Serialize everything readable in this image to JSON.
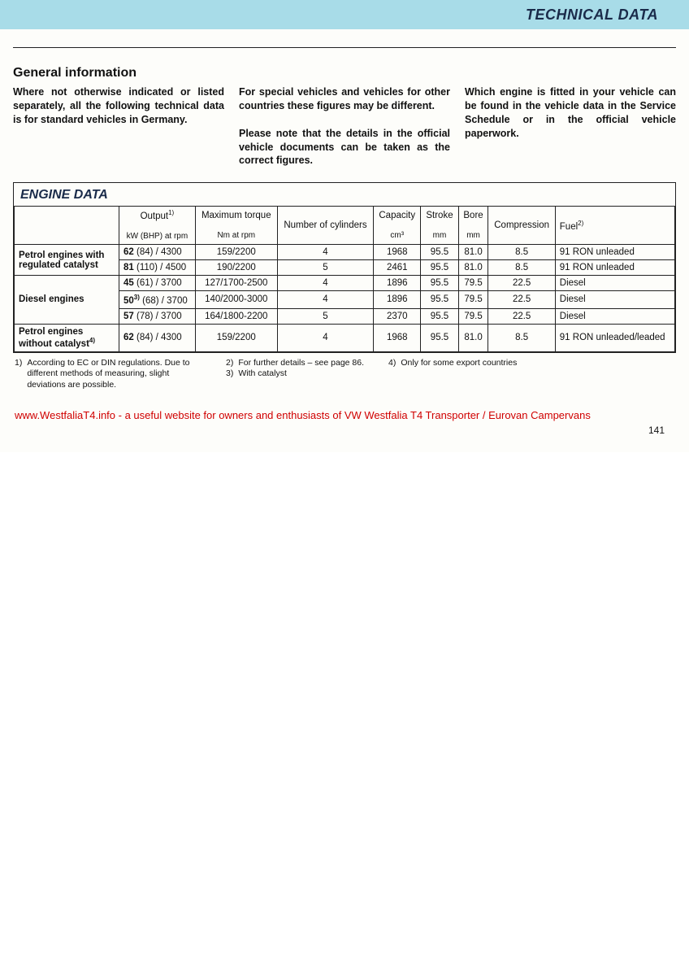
{
  "header": {
    "title": "TECHNICAL DATA"
  },
  "section": {
    "title": "General information",
    "col1": "Where not otherwise indicated or listed separately, all the following technical data is for standard vehicles in Germany.",
    "col2a": "For special vehicles and vehicles for other countries these figures may be different.",
    "col2b": "Please note that the details in the official vehicle documents can be taken as the correct figures.",
    "col3": "Which engine is fitted in your vehicle can be found in the vehicle data in the Service Schedule or in the official vehicle paperwork."
  },
  "table": {
    "title": "ENGINE DATA",
    "headers": {
      "output": "Output",
      "output_sup": "1)",
      "output_sub": "kW (BHP) at rpm",
      "torque": "Maximum torque",
      "torque_sub": "Nm at rpm",
      "cyl": "Number of cylinders",
      "cap": "Capacity",
      "cap_sub": "cm³",
      "stroke": "Stroke",
      "stroke_sub": "mm",
      "bore": "Bore",
      "bore_sub": "mm",
      "comp": "Compression",
      "fuel": "Fuel",
      "fuel_sup": "2)"
    },
    "groups": [
      {
        "label": "Petrol engines with regulated catalyst",
        "rows": [
          {
            "output_b": "62",
            "output_rest": " (84) / 4300",
            "torque": "159/2200",
            "cyl": "4",
            "cap": "1968",
            "stroke": "95.5",
            "bore": "81.0",
            "comp": "8.5",
            "fuel": "91 RON unleaded"
          },
          {
            "output_b": "81",
            "output_rest": " (110) / 4500",
            "torque": "190/2200",
            "cyl": "5",
            "cap": "2461",
            "stroke": "95.5",
            "bore": "81.0",
            "comp": "8.5",
            "fuel": "91 RON unleaded"
          }
        ]
      },
      {
        "label": "Diesel engines",
        "rows": [
          {
            "output_b": "45",
            "output_rest": " (61) / 3700",
            "torque": "127/1700-2500",
            "cyl": "4",
            "cap": "1896",
            "stroke": "95.5",
            "bore": "79.5",
            "comp": "22.5",
            "fuel": "Diesel"
          },
          {
            "output_b": "50",
            "output_sup": "3)",
            "output_rest": " (68) / 3700",
            "torque": "140/2000-3000",
            "cyl": "4",
            "cap": "1896",
            "stroke": "95.5",
            "bore": "79.5",
            "comp": "22.5",
            "fuel": "Diesel"
          },
          {
            "output_b": "57",
            "output_rest": " (78) / 3700",
            "torque": "164/1800-2200",
            "cyl": "5",
            "cap": "2370",
            "stroke": "95.5",
            "bore": "79.5",
            "comp": "22.5",
            "fuel": "Diesel"
          }
        ]
      },
      {
        "label": "Petrol engines without catalyst",
        "label_sup": "4)",
        "rows": [
          {
            "output_b": "62",
            "output_rest": " (84) / 4300",
            "torque": "159/2200",
            "cyl": "4",
            "cap": "1968",
            "stroke": "95.5",
            "bore": "81.0",
            "comp": "8.5",
            "fuel": "91 RON unleaded/leaded"
          }
        ]
      }
    ]
  },
  "footnotes": {
    "f1_num": "1)",
    "f1": "According to EC or DIN regulations. Due to different methods of measuring, slight deviations are possible.",
    "f2_num": "2)",
    "f2": "For further details – see page 86.",
    "f3_num": "3)",
    "f3": "With catalyst",
    "f4_num": "4)",
    "f4": "Only for some export countries"
  },
  "website": "www.WestfaliaT4.info - a useful website for owners and enthusiasts of VW Westfalia T4 Transporter / Eurovan Campervans",
  "page_number": "141",
  "colors": {
    "header_band": "#a8dce8",
    "header_text": "#1a2b4a",
    "website_text": "#d00000",
    "border": "#222222",
    "body_text": "#111111"
  }
}
